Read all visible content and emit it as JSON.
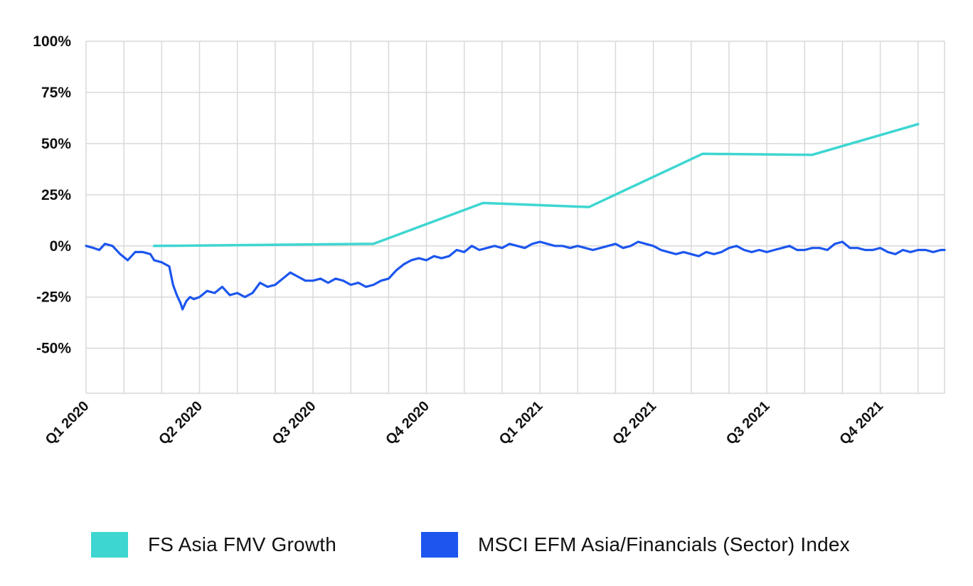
{
  "chart_data": {
    "type": "line",
    "title": "",
    "xlabel": "",
    "ylabel": "",
    "ylim": [
      -72,
      100
    ],
    "y_ticks": [
      "100%",
      "75%",
      "50%",
      "25%",
      "0%",
      "-25%",
      "-50%"
    ],
    "y_tick_values": [
      100,
      75,
      50,
      25,
      0,
      -25,
      -50
    ],
    "x_ticks": [
      "Q1 2020",
      "Q2 2020",
      "Q3 2020",
      "Q4 2020",
      "Q1 2021",
      "Q2 2021",
      "Q3 2021",
      "Q4 2021"
    ],
    "x_tick_values": [
      0,
      3,
      6,
      9,
      12,
      15,
      18,
      21
    ],
    "x_range": [
      0,
      22.7
    ],
    "x_unit": "months since start of Q1 2020",
    "grid": true,
    "legend_position": "bottom",
    "series": [
      {
        "name": "FS Asia FMV Growth",
        "color": "#3ED6D1",
        "x": [
          1.8,
          7.6,
          10.5,
          13.3,
          16.3,
          19.2,
          22.0
        ],
        "y": [
          0,
          1,
          21,
          19,
          45,
          44.5,
          59.5
        ]
      },
      {
        "name": "MSCI EFM Asia/Financials (Sector) Index",
        "color": "#1C56EE",
        "x": [
          0,
          0.2,
          0.35,
          0.5,
          0.7,
          0.9,
          1.1,
          1.3,
          1.5,
          1.7,
          1.8,
          2.0,
          2.2,
          2.3,
          2.4,
          2.5,
          2.55,
          2.65,
          2.75,
          2.85,
          3.0,
          3.2,
          3.4,
          3.6,
          3.8,
          4.0,
          4.2,
          4.4,
          4.6,
          4.8,
          5.0,
          5.2,
          5.4,
          5.6,
          5.8,
          6.0,
          6.2,
          6.4,
          6.6,
          6.8,
          7.0,
          7.2,
          7.4,
          7.6,
          7.8,
          8.0,
          8.2,
          8.4,
          8.6,
          8.8,
          9.0,
          9.2,
          9.4,
          9.6,
          9.8,
          10.0,
          10.2,
          10.4,
          10.6,
          10.8,
          11.0,
          11.2,
          11.4,
          11.6,
          11.8,
          12.0,
          12.2,
          12.4,
          12.6,
          12.8,
          13.0,
          13.2,
          13.4,
          13.6,
          13.8,
          14.0,
          14.2,
          14.4,
          14.6,
          14.8,
          15.0,
          15.2,
          15.4,
          15.6,
          15.8,
          16.0,
          16.2,
          16.4,
          16.6,
          16.8,
          17.0,
          17.2,
          17.4,
          17.6,
          17.8,
          18.0,
          18.2,
          18.4,
          18.6,
          18.8,
          19.0,
          19.2,
          19.4,
          19.6,
          19.8,
          20.0,
          20.2,
          20.4,
          20.6,
          20.8,
          21.0,
          21.2,
          21.4,
          21.6,
          21.8,
          22.0,
          22.2,
          22.4,
          22.6,
          22.7
        ],
        "y": [
          0,
          -1,
          -2,
          1,
          0,
          -4,
          -7,
          -3,
          -3,
          -4,
          -7,
          -8,
          -10,
          -19,
          -24,
          -28,
          -31,
          -27,
          -25,
          -26,
          -25,
          -22,
          -23,
          -20,
          -24,
          -23,
          -25,
          -23,
          -18,
          -20,
          -19,
          -16,
          -13,
          -15,
          -17,
          -17,
          -16,
          -18,
          -16,
          -17,
          -19,
          -18,
          -20,
          -19,
          -17,
          -16,
          -12,
          -9,
          -7,
          -6,
          -7,
          -5,
          -6,
          -5,
          -2,
          -3,
          0,
          -2,
          -1,
          0,
          -1,
          1,
          0,
          -1,
          1,
          2,
          1,
          0,
          0,
          -1,
          0,
          -1,
          -2,
          -1,
          0,
          1,
          -1,
          0,
          2,
          1,
          0,
          -2,
          -3,
          -4,
          -3,
          -4,
          -5,
          -3,
          -4,
          -3,
          -1,
          0,
          -2,
          -3,
          -2,
          -3,
          -2,
          -1,
          0,
          -2,
          -2,
          -1,
          -1,
          -2,
          1,
          2,
          -1,
          -1,
          -2,
          -2,
          -1,
          -3,
          -4,
          -2,
          -3,
          -2,
          -2,
          -3,
          -2,
          -2
        ]
      }
    ]
  },
  "legend": {
    "items": [
      {
        "label": "FS Asia FMV Growth",
        "color": "#3ED6D1"
      },
      {
        "label": "MSCI EFM Asia/Financials (Sector) Index",
        "color": "#1C56EE"
      }
    ]
  }
}
